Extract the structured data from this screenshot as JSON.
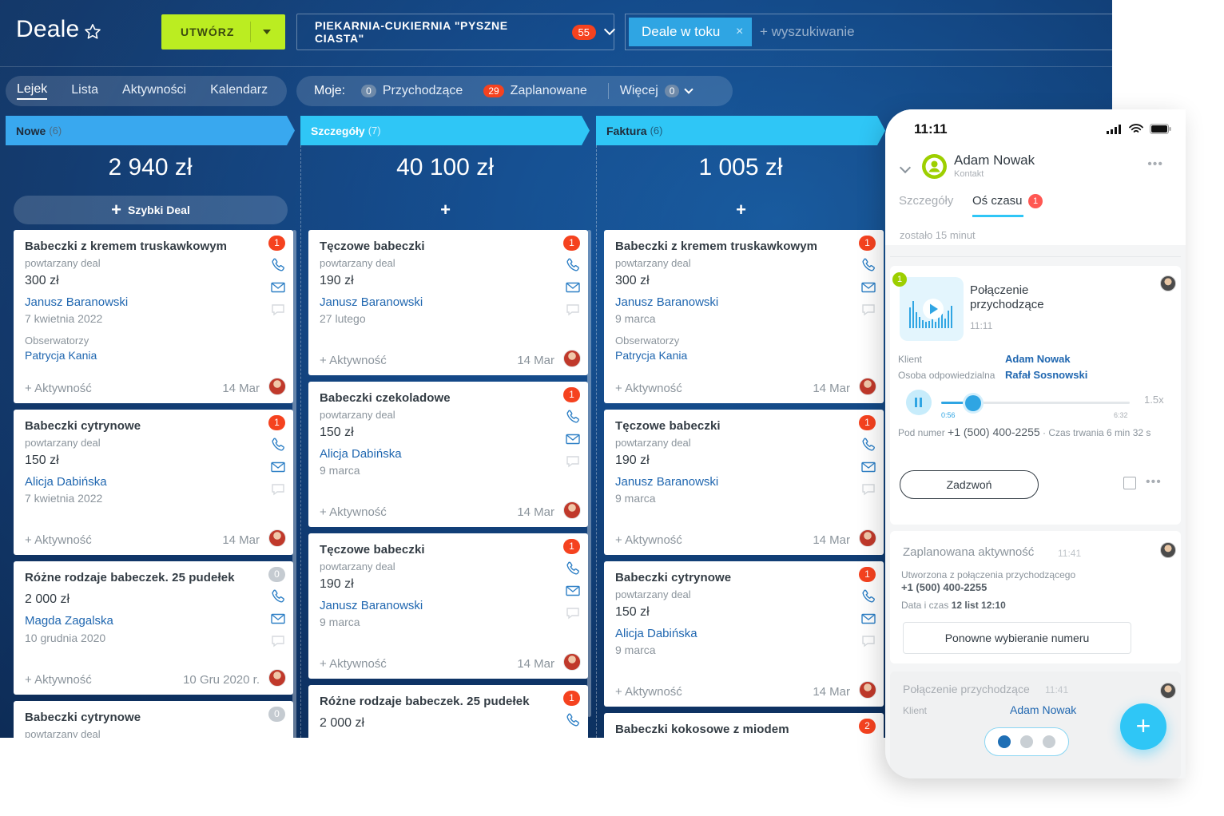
{
  "header": {
    "title": "Deale",
    "create_label": "UTWÓRZ",
    "company_filter": "PIEKARNIA-CUKIERNIA \"PYSZNE CIASTA\"",
    "company_count": "55",
    "search_tag": "Deale w toku",
    "search_tag_close": "×",
    "search_placeholder": "+ wyszukiwanie"
  },
  "views": [
    "Lejek",
    "Lista",
    "Aktywności",
    "Kalendarz"
  ],
  "quick": {
    "label": "Moje:",
    "incoming_count": "0",
    "incoming": "Przychodzące",
    "planned_count": "29",
    "planned": "Zaplanowane",
    "more": "Więcej",
    "more_count": "0"
  },
  "columns": [
    {
      "name": "Nowe",
      "count": "(6)",
      "sum": "2 940 zł",
      "add_label": "Szybki Deal",
      "add_plus": "+",
      "cards": [
        {
          "title": "Babeczki z kremem truskawkowym",
          "badge": "1",
          "sub": "powtarzany deal",
          "amount": "300 zł",
          "contact": "Janusz Baranowski",
          "date": "7 kwietnia 2022",
          "observers_label": "Obserwatorzy",
          "observers": "Patrycja Kania",
          "activity": "+ Aktywność",
          "card_date": "14 Mar"
        },
        {
          "title": "Babeczki cytrynowe",
          "badge": "1",
          "sub": "powtarzany deal",
          "amount": "150 zł",
          "contact": "Alicja Dabińska",
          "date": "7 kwietnia 2022",
          "activity": "+ Aktywność",
          "card_date": "14 Mar"
        },
        {
          "title": "Różne rodzaje babeczek. 25 pudełek",
          "badge": "0",
          "amount": "2 000 zł",
          "contact": "Magda Zagalska",
          "date": "10 grudnia 2020",
          "activity": "+ Aktywność",
          "card_date": "10 Gru 2020 r."
        },
        {
          "title": "Babeczki cytrynowe",
          "badge": "0",
          "sub": "powtarzany deal"
        }
      ]
    },
    {
      "name": "Szczegóły",
      "count": "(7)",
      "sum": "40 100 zł",
      "add_plus": "+",
      "cards": [
        {
          "title": "Tęczowe babeczki",
          "badge": "1",
          "sub": "powtarzany deal",
          "amount": "190 zł",
          "contact": "Janusz Baranowski",
          "date": "27 lutego",
          "activity": "+ Aktywność",
          "card_date": "14 Mar"
        },
        {
          "title": "Babeczki czekoladowe",
          "badge": "1",
          "sub": "powtarzany deal",
          "amount": "150 zł",
          "contact": "Alicja Dabińska",
          "date": "9 marca",
          "activity": "+ Aktywność",
          "card_date": "14 Mar"
        },
        {
          "title": "Tęczowe babeczki",
          "badge": "1",
          "sub": "powtarzany deal",
          "amount": "190 zł",
          "contact": "Janusz Baranowski",
          "date": "9 marca",
          "activity": "+ Aktywność",
          "card_date": "14 Mar"
        },
        {
          "title": "Różne rodzaje babeczek. 25 pudełek",
          "badge": "1",
          "amount": "2 000 zł"
        }
      ]
    },
    {
      "name": "Faktura",
      "count": "(6)",
      "sum": "1 005 zł",
      "add_plus": "+",
      "cards": [
        {
          "title": "Babeczki z kremem truskawkowym",
          "badge": "1",
          "sub": "powtarzany deal",
          "amount": "300 zł",
          "contact": "Janusz Baranowski",
          "date": "9 marca",
          "observers_label": "Obserwatorzy",
          "observers": "Patrycja Kania",
          "activity": "+ Aktywność",
          "card_date": "14 Mar"
        },
        {
          "title": "Tęczowe babeczki",
          "badge": "1",
          "sub": "powtarzany deal",
          "amount": "190 zł",
          "contact": "Janusz Baranowski",
          "date": "9 marca",
          "activity": "+ Aktywność",
          "card_date": "14 Mar"
        },
        {
          "title": "Babeczki cytrynowe",
          "badge": "1",
          "sub": "powtarzany deal",
          "amount": "150 zł",
          "contact": "Alicja Dabińska",
          "date": "9 marca",
          "activity": "+ Aktywność",
          "card_date": "14 Mar"
        },
        {
          "title": "Babeczki kokosowe z miodem",
          "badge": "2"
        }
      ]
    }
  ],
  "phone": {
    "time": "11:11",
    "contact_name": "Adam Nowak",
    "contact_role": "Kontakt",
    "more": "•••",
    "tab_details": "Szczegóły",
    "tab_timeline": "Oś czasu",
    "tab_timeline_badge": "1",
    "time_left": "zostało 15 minut",
    "call": {
      "badge": "1",
      "title": "Połączenie przychodzące",
      "time": "11:11",
      "client_label": "Klient",
      "client": "Adam Nowak",
      "responsible_label": "Osoba odpowiedzialna",
      "responsible": "Rafał Sosnowski",
      "progress": 0.17,
      "elapsed": "0:56",
      "duration_total": "6:32",
      "speed": "1.5x",
      "number_label": "Pod numer",
      "number": "+1 (500) 400-2255",
      "duration_label": "· Czas trwania",
      "duration": "6 min 32 s",
      "call_button": "Zadzwoń",
      "more": "•••"
    },
    "scheduled": {
      "title": "Zaplanowana aktywność",
      "time": "11:41",
      "text": "Utworzona z połączenia przychodzącego",
      "phone": "+1 (500) 400-2255",
      "dt_label": "Data i czas",
      "dt": "12 list 12:10",
      "redial": "Ponowne wybieranie numeru"
    },
    "incoming": {
      "title": "Połączenie przychodzące",
      "time": "11:41",
      "client_label": "Klient",
      "client": "Adam Nowak"
    },
    "fab": "+"
  },
  "colors": {
    "accent_green": "#bbed21",
    "stage_cyan": "#2fc6f6",
    "badge_red": "#f5421f",
    "link_blue": "#2067b0"
  },
  "icons": [
    "star-icon",
    "phone-icon",
    "mail-icon",
    "chat-icon",
    "avatar",
    "signal-icon",
    "wifi-icon",
    "battery-icon",
    "play-icon"
  ]
}
